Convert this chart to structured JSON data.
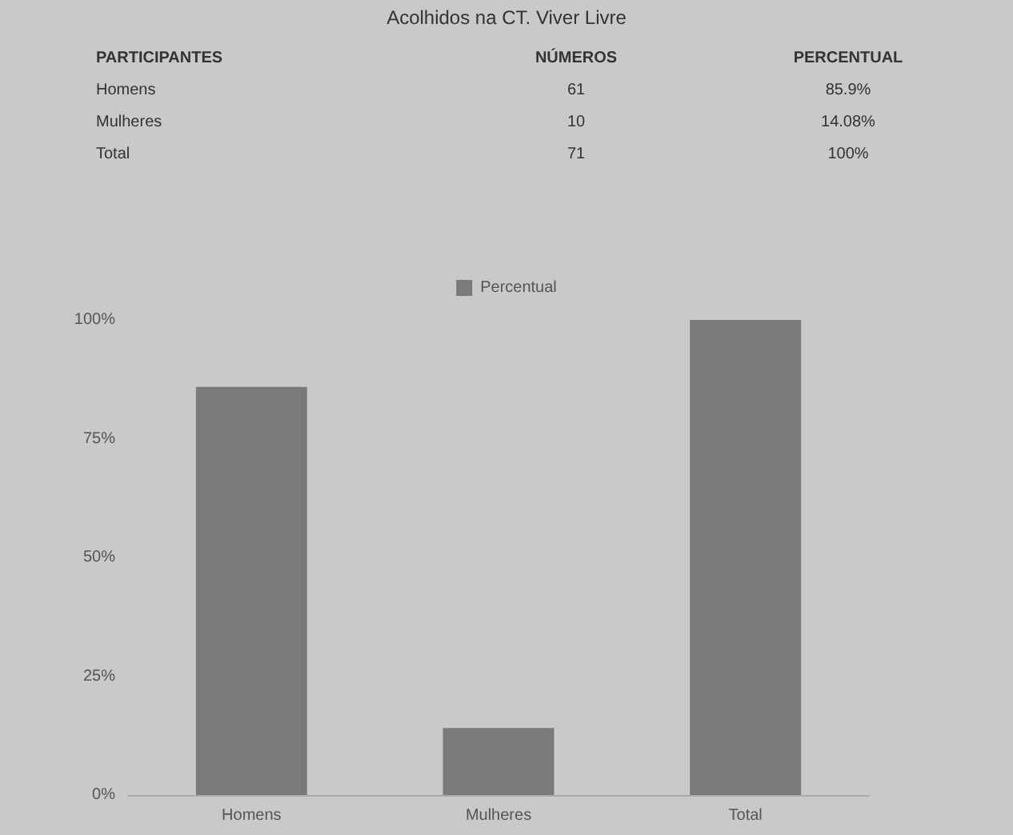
{
  "chart_data": {
    "type": "bar",
    "title": "Acolhidos na CT. Viver Livre",
    "categories": [
      "Homens",
      "Mulheres",
      "Total"
    ],
    "series": [
      {
        "name": "Percentual",
        "color": "#7a7a7a",
        "values": [
          85.9,
          14.08,
          100
        ]
      }
    ],
    "annotations": [
      "PARTICIPANTES",
      "NÚMEROS",
      "PERCENTUAL",
      "61",
      "10",
      "71",
      "85.9%",
      "14.08%",
      "100%"
    ],
    "ylim": [
      0,
      100
    ],
    "yticks": [
      {
        "value": 0,
        "label": "0%"
      },
      {
        "value": 25,
        "label": "25%"
      },
      {
        "value": 50,
        "label": "50%"
      },
      {
        "value": 75,
        "label": "75%"
      },
      {
        "value": 100,
        "label": "100%"
      }
    ],
    "grid": false,
    "legend": "top"
  }
}
